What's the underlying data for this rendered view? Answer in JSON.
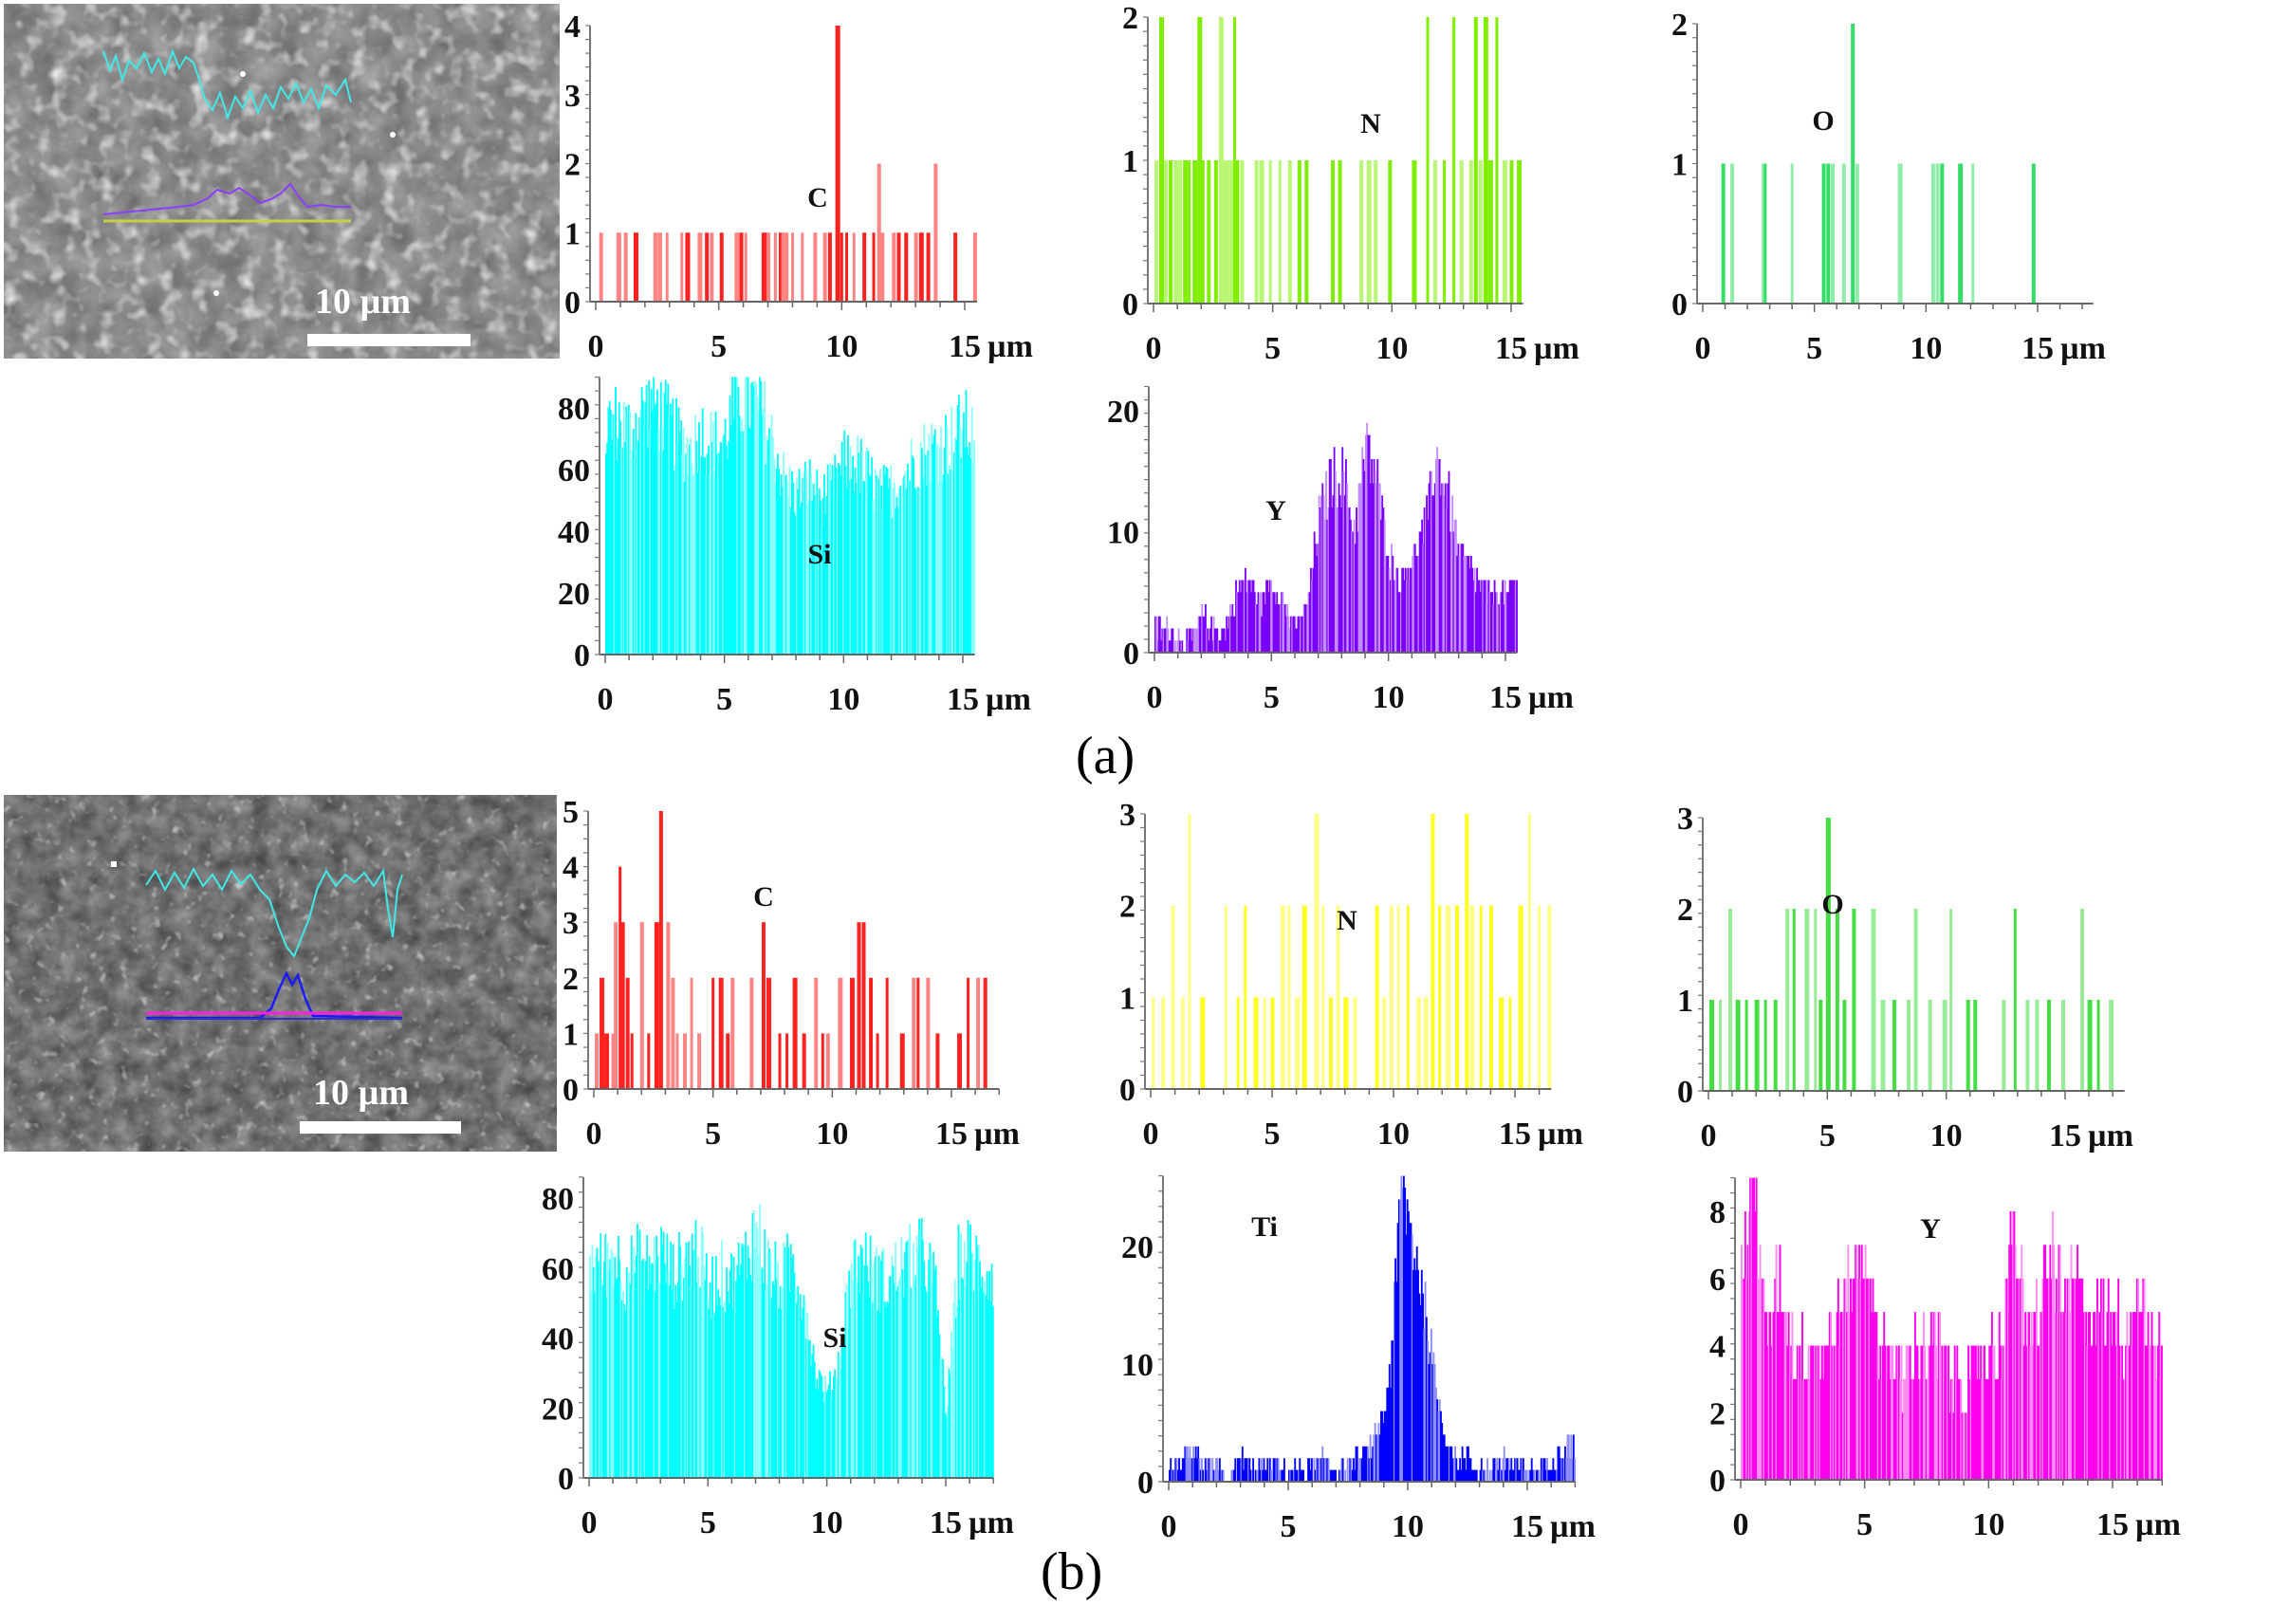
{
  "figure": {
    "panel_labels": [
      "(a)",
      "(b)"
    ],
    "scale_bar_label": "10 µm",
    "x_unit": "µm"
  },
  "chart_data": [
    {
      "id": "a-C",
      "panel": "(a)",
      "element": "C",
      "type": "bar",
      "color": "#ff2020",
      "xlabel": "µm",
      "xticks": [
        0,
        5,
        10,
        15
      ],
      "yticks": [
        0,
        1,
        2,
        3,
        4
      ],
      "xlim": [
        0,
        15.5
      ],
      "ylim": [
        0,
        4
      ],
      "x": [
        0.2,
        0.9,
        1.2,
        1.6,
        2.4,
        2.6,
        2.9,
        3.5,
        3.7,
        4.2,
        4.5,
        4.7,
        5.1,
        5.7,
        5.9,
        6.1,
        6.8,
        6.9,
        7.0,
        7.3,
        7.5,
        7.6,
        7.7,
        8.0,
        8.4,
        8.9,
        9.3,
        9.5,
        9.8,
        10.0,
        10.2,
        10.5,
        10.9,
        11.3,
        11.5,
        11.6,
        12.1,
        12.3,
        12.6,
        13.0,
        13.2,
        13.5,
        13.8,
        14.6,
        15.4
      ],
      "values": [
        1,
        1,
        1,
        1,
        1,
        1,
        1,
        1,
        1,
        1,
        1,
        1,
        1,
        1,
        1,
        1,
        1,
        1,
        1,
        1,
        1,
        1,
        1,
        1,
        1,
        1,
        1,
        1,
        4,
        1,
        1,
        1,
        1,
        1,
        2,
        1,
        1,
        1,
        1,
        1,
        1,
        1,
        2,
        1,
        1
      ]
    },
    {
      "id": "a-N",
      "panel": "(a)",
      "element": "N",
      "type": "bar",
      "color": "#80ee00",
      "xlabel": "µm",
      "xticks": [
        0,
        5,
        10,
        15
      ],
      "yticks": [
        0,
        1,
        2
      ],
      "xlim": [
        0,
        15.5
      ],
      "ylim": [
        0,
        2
      ],
      "x": [
        0.1,
        0.3,
        0.5,
        0.7,
        0.9,
        1.1,
        1.3,
        1.5,
        1.7,
        1.9,
        2.0,
        2.3,
        2.6,
        2.8,
        3.0,
        3.2,
        3.4,
        3.5,
        3.7,
        4.3,
        4.5,
        4.9,
        5.3,
        5.7,
        6.1,
        6.4,
        7.5,
        7.8,
        8.7,
        9.0,
        9.3,
        9.9,
        10.9,
        11.5,
        11.8,
        12.2,
        12.6,
        12.9,
        13.3,
        13.5,
        13.7,
        13.9,
        14.1,
        14.4,
        14.7,
        15.0,
        15.3
      ],
      "values": [
        1,
        2,
        1,
        1,
        1,
        1,
        1,
        1,
        1,
        2,
        1,
        1,
        1,
        2,
        1,
        1,
        2,
        1,
        1,
        1,
        1,
        1,
        1,
        1,
        1,
        1,
        1,
        1,
        1,
        1,
        1,
        1,
        1,
        2,
        1,
        1,
        2,
        1,
        1,
        2,
        1,
        2,
        1,
        2,
        1,
        1,
        1
      ]
    },
    {
      "id": "a-O",
      "panel": "(a)",
      "element": "O",
      "type": "bar",
      "color": "#33dd66",
      "xlabel": "µm",
      "xticks": [
        0,
        5,
        10,
        15
      ],
      "yticks": [
        0,
        1,
        2
      ],
      "xlim": [
        0,
        17.5
      ],
      "ylim": [
        0,
        2
      ],
      "x": [
        0.9,
        1.3,
        2.7,
        2.8,
        4.0,
        5.4,
        5.6,
        5.8,
        6.3,
        6.7,
        6.9,
        8.8,
        10.3,
        10.5,
        10.7,
        11.5,
        12.1,
        14.8
      ],
      "values": [
        1,
        1,
        1,
        1,
        1,
        1,
        1,
        1,
        1,
        2,
        1,
        1,
        1,
        1,
        1,
        1,
        1,
        1
      ]
    },
    {
      "id": "a-Si",
      "panel": "(a)",
      "element": "Si",
      "type": "bar",
      "color": "#00ffff",
      "xlabel": "µm",
      "xticks": [
        0,
        5,
        10,
        15
      ],
      "yticks": [
        0,
        20,
        40,
        60,
        80
      ],
      "xlim": [
        0,
        15.5
      ],
      "ylim": [
        0,
        90
      ],
      "x": [
        0,
        0.5,
        1,
        1.5,
        2,
        2.5,
        3,
        3.5,
        4,
        4.5,
        5,
        5.5,
        6,
        6.5,
        7,
        7.5,
        8,
        8.5,
        9,
        9.5,
        10,
        10.5,
        11,
        11.5,
        12,
        12.5,
        13,
        13.5,
        14,
        14.5,
        15,
        15.5
      ],
      "values": [
        74,
        76,
        72,
        78,
        82,
        76,
        70,
        66,
        72,
        68,
        70,
        84,
        82,
        80,
        68,
        56,
        52,
        56,
        50,
        54,
        62,
        62,
        58,
        52,
        54,
        58,
        64,
        66,
        68,
        70,
        74,
        70
      ]
    },
    {
      "id": "a-Y",
      "panel": "(a)",
      "element": "Y",
      "type": "bar",
      "color": "#7a00ff",
      "xlabel": "µm",
      "xticks": [
        0,
        5,
        10,
        15
      ],
      "yticks": [
        0,
        10,
        20
      ],
      "xlim": [
        0,
        15.5
      ],
      "ylim": [
        0,
        22
      ],
      "x": [
        0,
        0.5,
        1,
        1.5,
        2,
        2.5,
        3,
        3.5,
        4,
        4.5,
        5,
        5.5,
        6,
        6.5,
        7,
        7.5,
        8,
        8.5,
        9,
        9.5,
        10,
        10.5,
        11,
        11.5,
        12,
        12.5,
        13,
        13.5,
        14,
        14.5,
        15,
        15.5
      ],
      "values": [
        2,
        2,
        1,
        1,
        3,
        2,
        2,
        5,
        6,
        4,
        6,
        4,
        2,
        4,
        11,
        14,
        15,
        10,
        17,
        14,
        8,
        6,
        8,
        10,
        16,
        13,
        8,
        7,
        5,
        5,
        5,
        6
      ]
    },
    {
      "id": "b-C",
      "panel": "(b)",
      "element": "C",
      "type": "bar",
      "color": "#ff2020",
      "xlabel": "µm",
      "xticks": [
        0,
        5,
        10,
        15
      ],
      "yticks": [
        0,
        1,
        2,
        3,
        4,
        5
      ],
      "xlim": [
        0,
        17
      ],
      "ylim": [
        0,
        5
      ],
      "x": [
        0.1,
        0.3,
        0.5,
        0.8,
        0.9,
        1.1,
        1.2,
        1.4,
        1.6,
        2.0,
        2.3,
        2.6,
        2.8,
        3.1,
        3.3,
        3.5,
        3.8,
        4.1,
        4.4,
        5.0,
        5.3,
        5.6,
        5.8,
        6.6,
        7.1,
        7.3,
        7.8,
        8.1,
        8.4,
        8.8,
        9.3,
        9.6,
        9.8,
        10.3,
        10.8,
        11.1,
        11.3,
        11.6,
        11.9,
        12.3,
        12.9,
        13.4,
        13.6,
        14.0,
        14.4,
        15.3,
        15.7,
        16.1,
        16.4
      ],
      "values": [
        1,
        2,
        1,
        1,
        3,
        4,
        3,
        2,
        1,
        3,
        1,
        3,
        5,
        3,
        2,
        1,
        1,
        2,
        1,
        2,
        2,
        1,
        2,
        2,
        3,
        2,
        1,
        1,
        2,
        1,
        2,
        1,
        1,
        2,
        2,
        3,
        3,
        2,
        1,
        2,
        1,
        2,
        2,
        2,
        1,
        1,
        2,
        2,
        2
      ]
    },
    {
      "id": "b-N",
      "panel": "(b)",
      "element": "N",
      "type": "bar",
      "color": "#ffff20",
      "xlabel": "µm",
      "xticks": [
        0,
        5,
        10,
        15
      ],
      "yticks": [
        0,
        1,
        2,
        3
      ],
      "xlim": [
        0,
        16.5
      ],
      "ylim": [
        0,
        3
      ],
      "x": [
        0.1,
        0.5,
        0.9,
        1.3,
        1.6,
        2.1,
        3.1,
        3.6,
        3.9,
        4.3,
        4.7,
        5.0,
        5.4,
        5.7,
        6.0,
        6.3,
        6.8,
        7.1,
        7.4,
        7.7,
        8.0,
        8.4,
        9.3,
        9.6,
        9.9,
        10.2,
        10.6,
        11.0,
        11.3,
        11.6,
        11.9,
        12.2,
        12.6,
        13.0,
        13.2,
        13.6,
        14.0,
        14.4,
        14.8,
        15.2,
        15.6,
        16.0,
        16.4
      ],
      "values": [
        1,
        1,
        2,
        1,
        3,
        1,
        2,
        1,
        2,
        1,
        1,
        1,
        2,
        2,
        1,
        2,
        3,
        2,
        1,
        2,
        1,
        1,
        2,
        1,
        2,
        2,
        2,
        1,
        1,
        3,
        2,
        2,
        2,
        3,
        2,
        2,
        2,
        1,
        1,
        2,
        3,
        2,
        2
      ]
    },
    {
      "id": "b-O",
      "panel": "(b)",
      "element": "O",
      "type": "bar",
      "color": "#44dd44",
      "xlabel": "µm",
      "xticks": [
        0,
        5,
        10,
        15
      ],
      "yticks": [
        0,
        1,
        2,
        3
      ],
      "xlim": [
        0,
        17.5
      ],
      "ylim": [
        0,
        3
      ],
      "x": [
        0.1,
        0.5,
        0.9,
        1.2,
        1.6,
        2.0,
        2.4,
        2.8,
        3.3,
        3.6,
        4.1,
        4.5,
        4.7,
        5.0,
        5.4,
        5.7,
        6.1,
        6.9,
        7.3,
        7.8,
        8.4,
        8.7,
        9.3,
        9.9,
        10.2,
        10.9,
        11.2,
        12.4,
        12.9,
        13.4,
        13.8,
        14.3,
        14.9,
        15.7,
        16.0,
        16.4,
        16.9
      ],
      "values": [
        1,
        1,
        2,
        1,
        1,
        1,
        1,
        1,
        2,
        2,
        2,
        2,
        1,
        3,
        2,
        1,
        2,
        2,
        1,
        1,
        1,
        2,
        1,
        1,
        2,
        1,
        1,
        1,
        2,
        1,
        1,
        1,
        1,
        2,
        1,
        1,
        1
      ]
    },
    {
      "id": "b-Si",
      "panel": "(b)",
      "element": "Si",
      "type": "bar",
      "color": "#00ffff",
      "xlabel": "µm",
      "xticks": [
        0,
        5,
        10,
        15
      ],
      "yticks": [
        0,
        20,
        40,
        60,
        80
      ],
      "xlim": [
        0,
        17
      ],
      "ylim": [
        0,
        86
      ],
      "x": [
        0,
        0.5,
        1,
        1.5,
        2,
        2.5,
        3,
        3.5,
        4,
        4.5,
        5,
        5.5,
        6,
        6.5,
        7,
        7.5,
        8,
        8.5,
        9,
        9.5,
        10,
        10.5,
        11,
        11.5,
        12,
        12.5,
        13,
        13.5,
        14,
        14.5,
        15,
        15.5,
        16,
        16.5,
        17
      ],
      "values": [
        62,
        60,
        64,
        58,
        62,
        60,
        64,
        58,
        62,
        66,
        54,
        58,
        56,
        62,
        72,
        60,
        56,
        62,
        52,
        30,
        24,
        34,
        60,
        62,
        58,
        56,
        60,
        62,
        64,
        56,
        18,
        62,
        64,
        60,
        58
      ]
    },
    {
      "id": "b-Ti",
      "panel": "(b)",
      "element": "Ti",
      "type": "bar",
      "color": "#0000ff",
      "xlabel": "µm",
      "xticks": [
        0,
        5,
        10,
        15
      ],
      "yticks": [
        0,
        10,
        20
      ],
      "xlim": [
        0,
        17
      ],
      "ylim": [
        0,
        26
      ],
      "x": [
        0,
        0.5,
        1,
        1.5,
        2,
        2.5,
        3,
        3.5,
        4,
        4.5,
        5,
        5.5,
        6,
        6.5,
        7,
        7.5,
        8,
        8.5,
        9,
        9.25,
        9.5,
        9.75,
        10,
        10.25,
        10.5,
        10.75,
        11,
        11.5,
        12,
        12.5,
        13,
        13.5,
        14,
        14.5,
        15,
        15.5,
        16,
        16.5
      ],
      "values": [
        1,
        2,
        2,
        1,
        1,
        0,
        2,
        1,
        1,
        1,
        1,
        1,
        1,
        2,
        1,
        1,
        2,
        3,
        6,
        10,
        18,
        26,
        22,
        20,
        17,
        14,
        10,
        4,
        2,
        2,
        1,
        1,
        2,
        1,
        1,
        1,
        2,
        3
      ]
    },
    {
      "id": "b-Y",
      "panel": "(b)",
      "element": "Y",
      "type": "bar",
      "color": "#ff00ee",
      "xlabel": "µm",
      "xticks": [
        0,
        5,
        10,
        15
      ],
      "yticks": [
        0,
        2,
        4,
        6,
        8
      ],
      "xlim": [
        0,
        17
      ],
      "ylim": [
        0,
        9
      ],
      "x": [
        0,
        0.5,
        1,
        1.5,
        2,
        2.5,
        3,
        3.5,
        4,
        4.5,
        5,
        5.5,
        6,
        6.5,
        7,
        7.5,
        8,
        8.5,
        9,
        9.5,
        10,
        10.5,
        11,
        11.5,
        12,
        12.5,
        13,
        13.5,
        14,
        14.5,
        15,
        15.5,
        16,
        16.5
      ],
      "values": [
        6,
        9,
        4,
        6,
        4,
        4,
        4,
        4,
        5,
        6,
        7,
        4,
        4,
        3,
        4,
        4,
        4,
        3,
        3,
        3,
        4,
        4,
        8,
        4,
        5,
        7,
        5,
        6,
        5,
        5,
        5,
        4,
        6,
        4
      ]
    }
  ]
}
